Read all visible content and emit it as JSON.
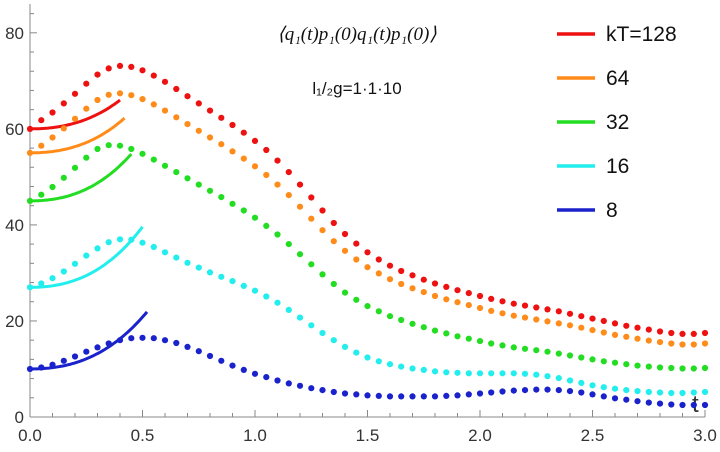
{
  "chart_data": {
    "type": "scatter",
    "title": "⟨q₁(t)p₁(0)q₁(t)p₁(0)⟩",
    "subtitle": "l₁/₂g=1·1·10",
    "xlabel": "t",
    "ylabel": "",
    "xlim": [
      0,
      3.0
    ],
    "ylim": [
      0,
      86
    ],
    "x_ticks": [
      "0.0",
      "0.5",
      "1.0",
      "1.5",
      "2.0",
      "2.5",
      "3.0"
    ],
    "y_ticks": [
      "0",
      "20",
      "40",
      "60",
      "80"
    ],
    "legend_position": "top-right",
    "series": [
      {
        "name": "kT=128",
        "color": "#ee1111",
        "fit_curve": {
          "a": 60.0,
          "b": 22.8,
          "t_end": 0.4
        },
        "points": [
          [
            0.0,
            60
          ],
          [
            0.05,
            61.8
          ],
          [
            0.1,
            63.4
          ],
          [
            0.15,
            65.3
          ],
          [
            0.2,
            67.3
          ],
          [
            0.25,
            69.4
          ],
          [
            0.3,
            71.3
          ],
          [
            0.35,
            72.6
          ],
          [
            0.4,
            73.1
          ],
          [
            0.45,
            72.9
          ],
          [
            0.5,
            72.2
          ],
          [
            0.55,
            71.1
          ],
          [
            0.6,
            69.8
          ],
          [
            0.65,
            68.3
          ],
          [
            0.7,
            66.8
          ],
          [
            0.75,
            65.3
          ],
          [
            0.8,
            63.8
          ],
          [
            0.85,
            62.3
          ],
          [
            0.9,
            60.8
          ],
          [
            0.95,
            59.2
          ],
          [
            1.0,
            57.5
          ],
          [
            1.05,
            55.6
          ],
          [
            1.1,
            53.4
          ],
          [
            1.15,
            51.0
          ],
          [
            1.2,
            48.4
          ],
          [
            1.25,
            45.7
          ],
          [
            1.3,
            43.0
          ],
          [
            1.35,
            40.4
          ],
          [
            1.4,
            38.1
          ],
          [
            1.45,
            36.1
          ],
          [
            1.5,
            34.3
          ],
          [
            1.55,
            32.8
          ],
          [
            1.6,
            31.5
          ],
          [
            1.65,
            30.4
          ],
          [
            1.7,
            29.5
          ],
          [
            1.75,
            28.6
          ],
          [
            1.8,
            27.8
          ],
          [
            1.85,
            27.1
          ],
          [
            1.9,
            26.4
          ],
          [
            1.95,
            25.8
          ],
          [
            2.0,
            25.2
          ],
          [
            2.05,
            24.6
          ],
          [
            2.1,
            24.1
          ],
          [
            2.15,
            23.6
          ],
          [
            2.2,
            23.2
          ],
          [
            2.25,
            22.8
          ],
          [
            2.3,
            22.4
          ],
          [
            2.35,
            22.0
          ],
          [
            2.4,
            21.5
          ],
          [
            2.45,
            21.0
          ],
          [
            2.5,
            20.5
          ],
          [
            2.55,
            20.0
          ],
          [
            2.6,
            19.5
          ],
          [
            2.65,
            19.0
          ],
          [
            2.7,
            18.6
          ],
          [
            2.75,
            18.2
          ],
          [
            2.8,
            17.8
          ],
          [
            2.85,
            17.5
          ],
          [
            2.9,
            17.3
          ],
          [
            2.95,
            17.3
          ],
          [
            3.0,
            17.5
          ]
        ]
      },
      {
        "name": "64",
        "color": "#ff8c1a",
        "fit_curve": {
          "a": 55.0,
          "b": 24.5,
          "t_end": 0.42
        },
        "points": [
          [
            0.0,
            55
          ],
          [
            0.05,
            56.5
          ],
          [
            0.1,
            58.2
          ],
          [
            0.15,
            60.1
          ],
          [
            0.2,
            62.1
          ],
          [
            0.25,
            64.2
          ],
          [
            0.3,
            66.0
          ],
          [
            0.35,
            67.1
          ],
          [
            0.4,
            67.4
          ],
          [
            0.45,
            67.0
          ],
          [
            0.5,
            66.2
          ],
          [
            0.55,
            65.1
          ],
          [
            0.6,
            63.8
          ],
          [
            0.65,
            62.4
          ],
          [
            0.7,
            61.0
          ],
          [
            0.75,
            59.6
          ],
          [
            0.8,
            58.2
          ],
          [
            0.85,
            56.8
          ],
          [
            0.9,
            55.3
          ],
          [
            0.95,
            53.8
          ],
          [
            1.0,
            52.2
          ],
          [
            1.05,
            50.4
          ],
          [
            1.1,
            48.4
          ],
          [
            1.15,
            46.2
          ],
          [
            1.2,
            43.8
          ],
          [
            1.25,
            41.3
          ],
          [
            1.3,
            38.9
          ],
          [
            1.35,
            36.6
          ],
          [
            1.4,
            34.6
          ],
          [
            1.45,
            32.8
          ],
          [
            1.5,
            31.2
          ],
          [
            1.55,
            29.9
          ],
          [
            1.6,
            28.7
          ],
          [
            1.65,
            27.7
          ],
          [
            1.7,
            26.8
          ],
          [
            1.75,
            26.0
          ],
          [
            1.8,
            25.2
          ],
          [
            1.85,
            24.5
          ],
          [
            1.9,
            23.9
          ],
          [
            1.95,
            23.3
          ],
          [
            2.0,
            22.7
          ],
          [
            2.05,
            22.1
          ],
          [
            2.1,
            21.6
          ],
          [
            2.15,
            21.1
          ],
          [
            2.2,
            20.7
          ],
          [
            2.25,
            20.3
          ],
          [
            2.3,
            19.9
          ],
          [
            2.35,
            19.5
          ],
          [
            2.4,
            19.1
          ],
          [
            2.45,
            18.6
          ],
          [
            2.5,
            18.1
          ],
          [
            2.55,
            17.6
          ],
          [
            2.6,
            17.1
          ],
          [
            2.65,
            16.7
          ],
          [
            2.7,
            16.3
          ],
          [
            2.75,
            15.9
          ],
          [
            2.8,
            15.6
          ],
          [
            2.85,
            15.3
          ],
          [
            2.9,
            15.1
          ],
          [
            2.95,
            15.1
          ],
          [
            3.0,
            15.3
          ]
        ]
      },
      {
        "name": "32",
        "color": "#22dd22",
        "fit_curve": {
          "a": 45.0,
          "b": 28.0,
          "t_end": 0.45
        },
        "points": [
          [
            0.0,
            45
          ],
          [
            0.05,
            46.3
          ],
          [
            0.1,
            47.9
          ],
          [
            0.15,
            49.8
          ],
          [
            0.2,
            51.9
          ],
          [
            0.25,
            54.0
          ],
          [
            0.3,
            55.8
          ],
          [
            0.35,
            56.6
          ],
          [
            0.4,
            56.5
          ],
          [
            0.45,
            55.8
          ],
          [
            0.5,
            54.8
          ],
          [
            0.55,
            53.6
          ],
          [
            0.6,
            52.3
          ],
          [
            0.65,
            51.0
          ],
          [
            0.7,
            49.7
          ],
          [
            0.75,
            48.4
          ],
          [
            0.8,
            47.1
          ],
          [
            0.85,
            45.8
          ],
          [
            0.9,
            44.4
          ],
          [
            0.95,
            43.0
          ],
          [
            1.0,
            41.5
          ],
          [
            1.05,
            39.8
          ],
          [
            1.1,
            38.0
          ],
          [
            1.15,
            36.0
          ],
          [
            1.2,
            33.9
          ],
          [
            1.25,
            31.8
          ],
          [
            1.3,
            29.7
          ],
          [
            1.35,
            27.7
          ],
          [
            1.4,
            25.9
          ],
          [
            1.45,
            24.4
          ],
          [
            1.5,
            23.1
          ],
          [
            1.55,
            22.0
          ],
          [
            1.6,
            21.0
          ],
          [
            1.65,
            20.2
          ],
          [
            1.7,
            19.4
          ],
          [
            1.75,
            18.7
          ],
          [
            1.8,
            18.0
          ],
          [
            1.85,
            17.4
          ],
          [
            1.9,
            16.8
          ],
          [
            1.95,
            16.3
          ],
          [
            2.0,
            15.8
          ],
          [
            2.05,
            15.3
          ],
          [
            2.1,
            14.9
          ],
          [
            2.15,
            14.5
          ],
          [
            2.2,
            14.2
          ],
          [
            2.25,
            13.9
          ],
          [
            2.3,
            13.6
          ],
          [
            2.35,
            13.2
          ],
          [
            2.4,
            12.8
          ],
          [
            2.45,
            12.4
          ],
          [
            2.5,
            12.0
          ],
          [
            2.55,
            11.6
          ],
          [
            2.6,
            11.3
          ],
          [
            2.65,
            11.0
          ],
          [
            2.7,
            10.7
          ],
          [
            2.75,
            10.5
          ],
          [
            2.8,
            10.3
          ],
          [
            2.85,
            10.2
          ],
          [
            2.9,
            10.1
          ],
          [
            2.95,
            10.1
          ],
          [
            3.0,
            10.2
          ]
        ]
      },
      {
        "name": "16",
        "color": "#22eeee",
        "fit_curve": {
          "a": 27.0,
          "b": 28.0,
          "t_end": 0.5
        },
        "points": [
          [
            0.0,
            27
          ],
          [
            0.05,
            27.8
          ],
          [
            0.1,
            28.9
          ],
          [
            0.15,
            30.3
          ],
          [
            0.2,
            31.9
          ],
          [
            0.25,
            33.6
          ],
          [
            0.3,
            35.1
          ],
          [
            0.35,
            36.4
          ],
          [
            0.4,
            37.0
          ],
          [
            0.45,
            36.9
          ],
          [
            0.5,
            36.3
          ],
          [
            0.55,
            35.4
          ],
          [
            0.6,
            34.3
          ],
          [
            0.65,
            33.2
          ],
          [
            0.7,
            32.1
          ],
          [
            0.75,
            31.1
          ],
          [
            0.8,
            30.1
          ],
          [
            0.85,
            29.2
          ],
          [
            0.9,
            28.3
          ],
          [
            0.95,
            27.3
          ],
          [
            1.0,
            26.3
          ],
          [
            1.05,
            25.1
          ],
          [
            1.1,
            23.8
          ],
          [
            1.15,
            22.3
          ],
          [
            1.2,
            20.7
          ],
          [
            1.25,
            19.1
          ],
          [
            1.3,
            17.5
          ],
          [
            1.35,
            16.0
          ],
          [
            1.4,
            14.6
          ],
          [
            1.45,
            13.4
          ],
          [
            1.5,
            12.4
          ],
          [
            1.55,
            11.6
          ],
          [
            1.6,
            11.0
          ],
          [
            1.65,
            10.5
          ],
          [
            1.7,
            10.1
          ],
          [
            1.75,
            9.8
          ],
          [
            1.8,
            9.5
          ],
          [
            1.85,
            9.3
          ],
          [
            1.9,
            9.2
          ],
          [
            1.95,
            9.1
          ],
          [
            2.0,
            9.1
          ],
          [
            2.05,
            9.1
          ],
          [
            2.1,
            9.1
          ],
          [
            2.15,
            9.1
          ],
          [
            2.2,
            9.0
          ],
          [
            2.25,
            8.8
          ],
          [
            2.3,
            8.5
          ],
          [
            2.35,
            8.1
          ],
          [
            2.4,
            7.6
          ],
          [
            2.45,
            7.1
          ],
          [
            2.5,
            6.6
          ],
          [
            2.55,
            6.2
          ],
          [
            2.6,
            5.9
          ],
          [
            2.65,
            5.6
          ],
          [
            2.7,
            5.4
          ],
          [
            2.75,
            5.2
          ],
          [
            2.8,
            5.1
          ],
          [
            2.85,
            5.0
          ],
          [
            2.9,
            5.0
          ],
          [
            2.95,
            5.1
          ],
          [
            3.0,
            5.2
          ]
        ]
      },
      {
        "name": "8",
        "color": "#1a22cc",
        "fit_curve": {
          "a": 10.0,
          "b": 24.0,
          "t_end": 0.52
        },
        "points": [
          [
            0.0,
            10
          ],
          [
            0.05,
            10.3
          ],
          [
            0.1,
            10.9
          ],
          [
            0.15,
            11.7
          ],
          [
            0.2,
            12.6
          ],
          [
            0.25,
            13.6
          ],
          [
            0.3,
            14.5
          ],
          [
            0.35,
            15.3
          ],
          [
            0.4,
            16.0
          ],
          [
            0.45,
            16.4
          ],
          [
            0.5,
            16.5
          ],
          [
            0.55,
            16.4
          ],
          [
            0.6,
            16.0
          ],
          [
            0.65,
            15.4
          ],
          [
            0.7,
            14.6
          ],
          [
            0.75,
            13.7
          ],
          [
            0.8,
            12.7
          ],
          [
            0.85,
            11.7
          ],
          [
            0.9,
            10.7
          ],
          [
            0.95,
            9.8
          ],
          [
            1.0,
            9.0
          ],
          [
            1.05,
            8.3
          ],
          [
            1.1,
            7.6
          ],
          [
            1.15,
            7.0
          ],
          [
            1.2,
            6.5
          ],
          [
            1.25,
            6.0
          ],
          [
            1.3,
            5.6
          ],
          [
            1.35,
            5.2
          ],
          [
            1.4,
            4.9
          ],
          [
            1.45,
            4.7
          ],
          [
            1.5,
            4.5
          ],
          [
            1.55,
            4.4
          ],
          [
            1.6,
            4.3
          ],
          [
            1.65,
            4.3
          ],
          [
            1.7,
            4.3
          ],
          [
            1.75,
            4.3
          ],
          [
            1.8,
            4.3
          ],
          [
            1.85,
            4.4
          ],
          [
            1.9,
            4.5
          ],
          [
            1.95,
            4.7
          ],
          [
            2.0,
            4.9
          ],
          [
            2.05,
            5.1
          ],
          [
            2.1,
            5.3
          ],
          [
            2.15,
            5.5
          ],
          [
            2.2,
            5.6
          ],
          [
            2.25,
            5.7
          ],
          [
            2.3,
            5.7
          ],
          [
            2.35,
            5.6
          ],
          [
            2.4,
            5.4
          ],
          [
            2.45,
            5.1
          ],
          [
            2.5,
            4.7
          ],
          [
            2.55,
            4.3
          ],
          [
            2.6,
            3.9
          ],
          [
            2.65,
            3.6
          ],
          [
            2.7,
            3.3
          ],
          [
            2.75,
            3.0
          ],
          [
            2.8,
            2.8
          ],
          [
            2.85,
            2.6
          ],
          [
            2.9,
            2.5
          ],
          [
            2.95,
            2.5
          ],
          [
            3.0,
            2.5
          ]
        ]
      }
    ]
  }
}
